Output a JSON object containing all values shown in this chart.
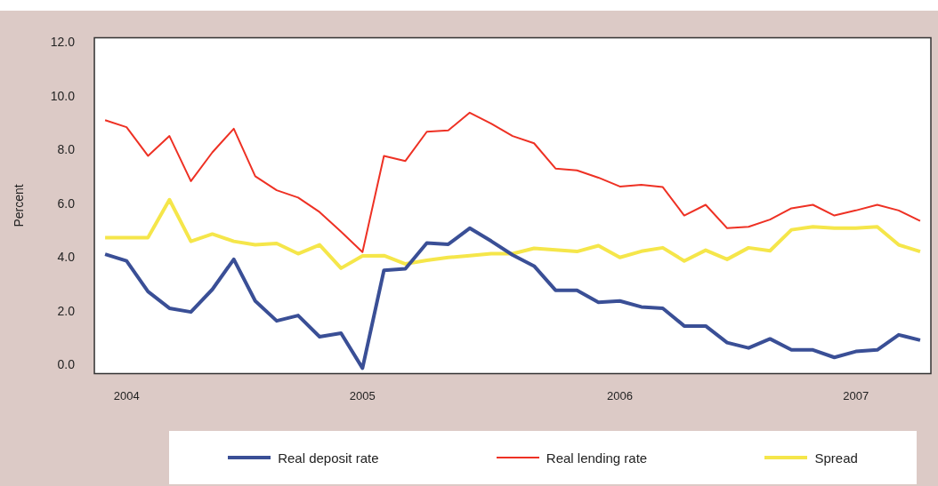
{
  "chart_data": {
    "type": "line",
    "ylabel": "Percent",
    "categories": [
      null,
      "2004",
      null,
      null,
      null,
      null,
      null,
      null,
      null,
      null,
      null,
      null,
      "2005",
      null,
      null,
      null,
      null,
      null,
      null,
      null,
      null,
      null,
      null,
      null,
      "2006",
      null,
      null,
      null,
      null,
      null,
      null,
      null,
      null,
      null,
      null,
      "2007",
      null,
      null,
      null
    ],
    "series": [
      {
        "name": "Real deposit rate",
        "color": "#3a4f96",
        "values": [
          4.14,
          3.89,
          2.75,
          2.13,
          1.99,
          2.83,
          3.95,
          2.4,
          1.66,
          1.86,
          1.07,
          1.2,
          -0.1,
          3.54,
          3.6,
          4.56,
          4.51,
          5.11,
          4.63,
          4.11,
          3.7,
          2.8,
          2.8,
          2.35,
          2.4,
          2.18,
          2.13,
          1.47,
          1.47,
          0.85,
          0.65,
          0.99,
          0.58,
          0.58,
          0.3,
          0.52,
          0.58,
          1.14,
          0.94
        ]
      },
      {
        "name": "Real lending rate",
        "color": "#ee3124",
        "values": [
          9.13,
          8.87,
          7.8,
          8.54,
          6.86,
          7.93,
          8.81,
          7.04,
          6.52,
          6.25,
          5.71,
          4.98,
          4.22,
          7.8,
          7.61,
          8.7,
          8.75,
          9.41,
          9.0,
          8.54,
          8.27,
          7.33,
          7.26,
          6.99,
          6.66,
          6.72,
          6.64,
          5.58,
          5.98,
          5.11,
          5.16,
          5.43,
          5.85,
          5.98,
          5.58,
          5.77,
          5.98,
          5.77,
          5.38
        ]
      },
      {
        "name": "Spread",
        "color": "#f5e64a",
        "values": [
          4.76,
          4.76,
          4.76,
          6.17,
          4.62,
          4.89,
          4.62,
          4.49,
          4.54,
          4.16,
          4.49,
          3.62,
          4.08,
          4.09,
          3.78,
          3.91,
          4.02,
          4.09,
          4.16,
          4.16,
          4.36,
          4.3,
          4.24,
          4.46,
          4.02,
          4.25,
          4.38,
          3.89,
          4.29,
          3.95,
          4.38,
          4.27,
          5.05,
          5.16,
          5.11,
          5.11,
          5.16,
          4.49,
          4.24
        ]
      }
    ],
    "ylim": [
      -0.3,
      12.2
    ],
    "yticks": [
      {
        "value": 0,
        "label": "0.0"
      },
      {
        "value": 2,
        "label": "2.0"
      },
      {
        "value": 4,
        "label": "4.0"
      },
      {
        "value": 6,
        "label": "6.0"
      },
      {
        "value": 8,
        "label": "8.0"
      },
      {
        "value": 10,
        "label": "10.0"
      },
      {
        "value": 12,
        "label": "12.0"
      }
    ],
    "grid": false,
    "legend": "bottom",
    "marker": "none",
    "line_style": "solid"
  }
}
